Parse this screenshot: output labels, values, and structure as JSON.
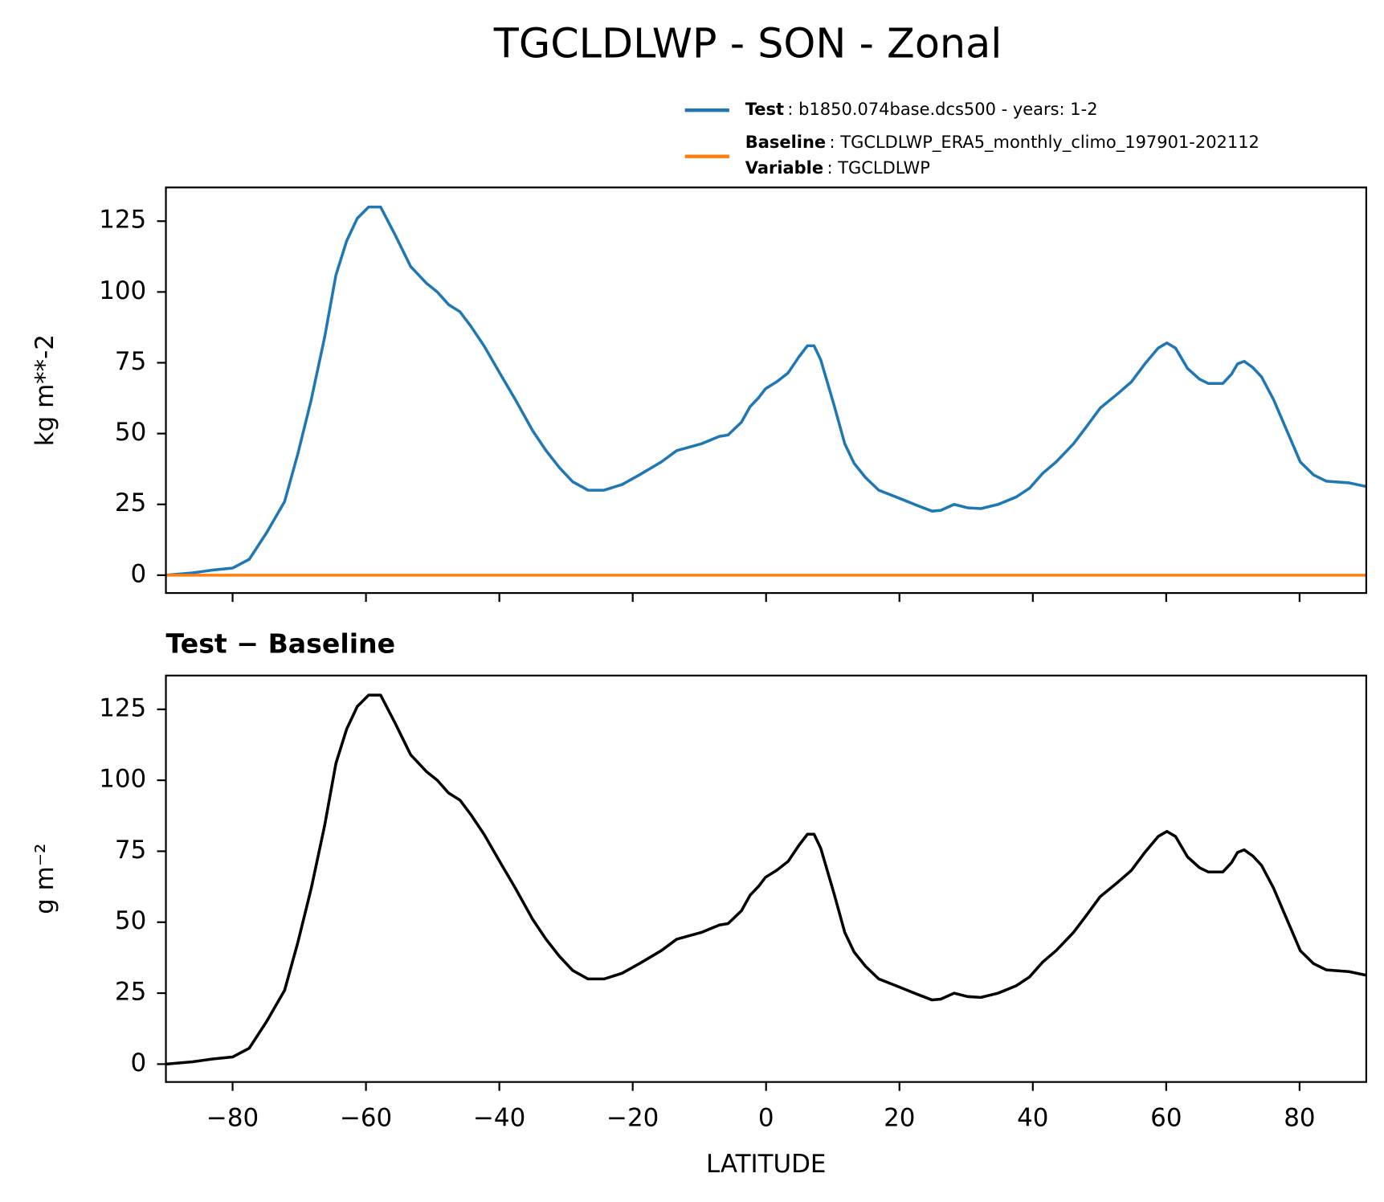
{
  "chart_data": [
    {
      "type": "line",
      "suptitle": "TGCLDLWP - SON - Zonal",
      "ylabel": "kg m**-2",
      "legend_note": {
        "name": "Variable",
        "text": ": TGCLDLWP"
      },
      "xlim": [
        -90,
        90
      ],
      "ylim": [
        -6.3,
        136.9
      ],
      "yticks": [
        0,
        25,
        50,
        75,
        100,
        125
      ],
      "x": [
        -90,
        -86,
        -83,
        -80,
        -77.5,
        -74.9,
        -72.2,
        -70.2,
        -68.2,
        -66.2,
        -64.5,
        -62.9,
        -61.3,
        -59.6,
        -57.8,
        -55.6,
        -53.3,
        -50.9,
        -49.3,
        -47.6,
        -45.9,
        -44.3,
        -42.3,
        -39.6,
        -37.6,
        -35,
        -33,
        -31,
        -29,
        -26.7,
        -24.3,
        -21.6,
        -19,
        -15.7,
        -13.4,
        -9.7,
        -7,
        -5.7,
        -3.7,
        -2.4,
        -1.1,
        -0.1,
        1.6,
        3.3,
        4.9,
        6.2,
        7.2,
        8.2,
        10.2,
        11.8,
        13.2,
        14.9,
        16.9,
        19.5,
        22.9,
        24.9,
        26.2,
        28.2,
        30.2,
        32.2,
        34.8,
        37.5,
        39.5,
        41.5,
        43.5,
        46.1,
        48.1,
        50.1,
        52.8,
        54.8,
        56.8,
        58.8,
        60.1,
        61.4,
        63.2,
        65,
        66.3,
        68.5,
        69.8,
        70.7,
        71.7,
        73,
        74.3,
        76.1,
        78.1,
        80.1,
        82.1,
        84,
        87.4,
        90
      ],
      "series": [
        {
          "name": "Test",
          "description": ": b1850.074base.dcs500 - years: 1-2",
          "color": "#1f77b4",
          "values": [
            0,
            0.8,
            1.8,
            2.5,
            5.6,
            15,
            26,
            43,
            62,
            84,
            106,
            118,
            126,
            130,
            130,
            120,
            109,
            103,
            100,
            95.5,
            93,
            88,
            81,
            70,
            62,
            51,
            44,
            38,
            33,
            30,
            30,
            32,
            35.4,
            40,
            44,
            46.4,
            49,
            49.5,
            54,
            59.5,
            62.7,
            65.8,
            68.3,
            71.4,
            77,
            81,
            81,
            76,
            60,
            46.4,
            39.5,
            34.5,
            30,
            27.6,
            24.4,
            22.6,
            22.9,
            25,
            23.8,
            23.5,
            25,
            27.6,
            30.7,
            36,
            40,
            46.4,
            52.6,
            59,
            64.2,
            68.3,
            74.6,
            80.2,
            82,
            80.2,
            73,
            69.2,
            67.7,
            67.7,
            71,
            74.6,
            75.5,
            73.3,
            70,
            62,
            51,
            40,
            35.4,
            33.2,
            32.6,
            31.3
          ]
        },
        {
          "name": "Baseline",
          "description": ": TGCLDLWP_ERA5_monthly_climo_197901-202112",
          "color": "#ff7f0e",
          "values": [
            0,
            0,
            0,
            0,
            0,
            0,
            0,
            0,
            0,
            0,
            0,
            0,
            0,
            0,
            0,
            0,
            0,
            0,
            0,
            0,
            0,
            0,
            0,
            0,
            0,
            0,
            0,
            0,
            0,
            0,
            0,
            0,
            0,
            0,
            0,
            0,
            0,
            0,
            0,
            0,
            0,
            0,
            0,
            0,
            0,
            0,
            0,
            0,
            0,
            0,
            0,
            0,
            0,
            0,
            0,
            0,
            0,
            0,
            0,
            0,
            0,
            0,
            0,
            0,
            0,
            0,
            0,
            0,
            0,
            0,
            0,
            0,
            0,
            0,
            0,
            0,
            0,
            0,
            0,
            0,
            0,
            0,
            0,
            0,
            0,
            0,
            0,
            0,
            0,
            0
          ]
        }
      ]
    },
    {
      "type": "line",
      "title": "Test − Baseline",
      "ylabel": "g m⁻²",
      "xlabel": "LATITUDE",
      "xlim": [
        -90,
        90
      ],
      "ylim": [
        -6.3,
        136.9
      ],
      "yticks": [
        0,
        25,
        50,
        75,
        100,
        125
      ],
      "xticks": [
        {
          "value": -80,
          "label": "−80"
        },
        {
          "value": -60,
          "label": "−60"
        },
        {
          "value": -40,
          "label": "−40"
        },
        {
          "value": -20,
          "label": "−20"
        },
        0,
        20,
        40,
        60,
        80
      ],
      "x": [
        -90,
        -86,
        -83,
        -80,
        -77.5,
        -74.9,
        -72.2,
        -70.2,
        -68.2,
        -66.2,
        -64.5,
        -62.9,
        -61.3,
        -59.6,
        -57.8,
        -55.6,
        -53.3,
        -50.9,
        -49.3,
        -47.6,
        -45.9,
        -44.3,
        -42.3,
        -39.6,
        -37.6,
        -35,
        -33,
        -31,
        -29,
        -26.7,
        -24.3,
        -21.6,
        -19,
        -15.7,
        -13.4,
        -9.7,
        -7,
        -5.7,
        -3.7,
        -2.4,
        -1.1,
        -0.1,
        1.6,
        3.3,
        4.9,
        6.2,
        7.2,
        8.2,
        10.2,
        11.8,
        13.2,
        14.9,
        16.9,
        19.5,
        22.9,
        24.9,
        26.2,
        28.2,
        30.2,
        32.2,
        34.8,
        37.5,
        39.5,
        41.5,
        43.5,
        46.1,
        48.1,
        50.1,
        52.8,
        54.8,
        56.8,
        58.8,
        60.1,
        61.4,
        63.2,
        65,
        66.3,
        68.5,
        69.8,
        70.7,
        71.7,
        73,
        74.3,
        76.1,
        78.1,
        80.1,
        82.1,
        84,
        87.4,
        90
      ],
      "series": [
        {
          "color": "#000000",
          "values": [
            0,
            0.8,
            1.8,
            2.5,
            5.6,
            15,
            26,
            43,
            62,
            84,
            106,
            118,
            126,
            130,
            130,
            120,
            109,
            103,
            100,
            95.5,
            93,
            88,
            81,
            70,
            62,
            51,
            44,
            38,
            33,
            30,
            30,
            32,
            35.4,
            40,
            44,
            46.4,
            49,
            49.5,
            54,
            59.5,
            62.7,
            65.8,
            68.3,
            71.4,
            77,
            81,
            81,
            76,
            60,
            46.4,
            39.5,
            34.5,
            30,
            27.6,
            24.4,
            22.6,
            22.9,
            25,
            23.8,
            23.5,
            25,
            27.6,
            30.7,
            36,
            40,
            46.4,
            52.6,
            59,
            64.2,
            68.3,
            74.6,
            80.2,
            82,
            80.2,
            73,
            69.2,
            67.7,
            67.7,
            71,
            74.6,
            75.5,
            73.3,
            70,
            62,
            51,
            40,
            35.4,
            33.2,
            32.6,
            31.3
          ]
        }
      ]
    }
  ]
}
